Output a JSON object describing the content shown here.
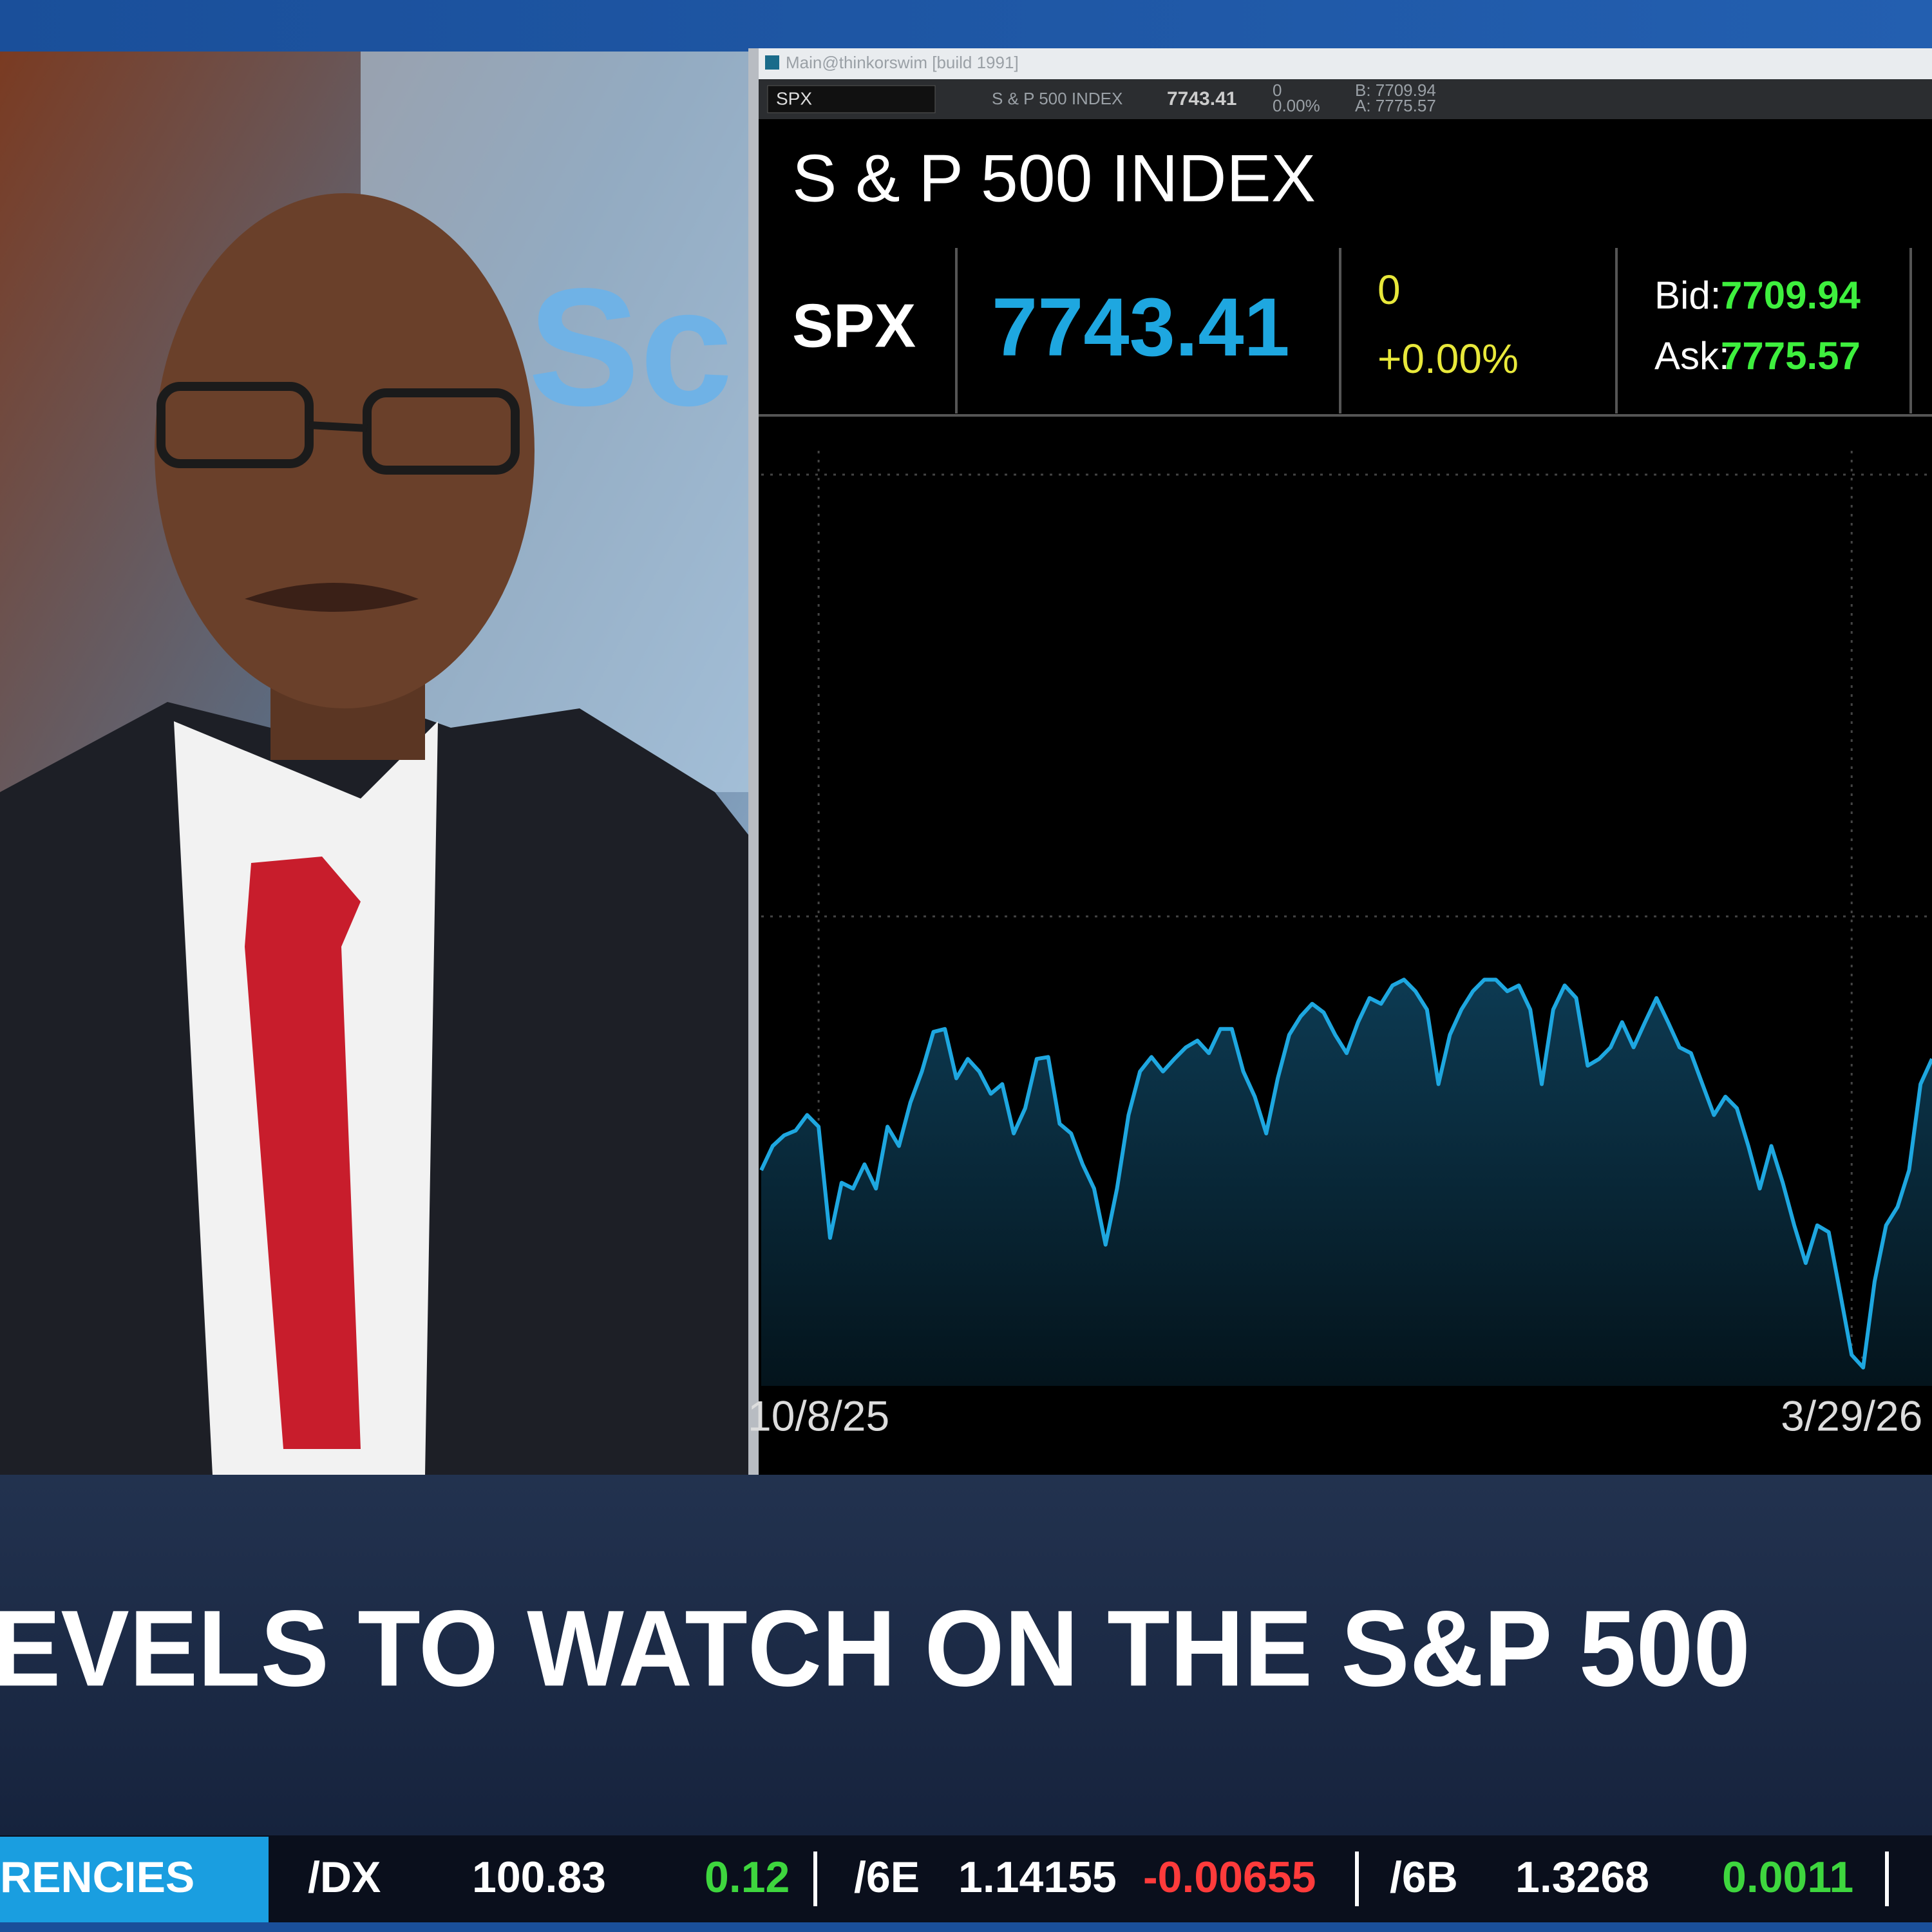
{
  "window": {
    "title": "Main@thinkorswim [build 1991]"
  },
  "toolbar": {
    "symbol": "SPX",
    "description": "S & P 500 INDEX",
    "last": "7743.41",
    "change": "0",
    "percent_change": "0.00%",
    "bid": "B: 7709.94",
    "ask": "A: 7775.57"
  },
  "quote": {
    "title": "S & P 500 INDEX",
    "symbol": "SPX",
    "last": "7743.41",
    "change": "0",
    "percent_change": "+0.00%",
    "bid_label": "Bid:",
    "bid": "7709.94",
    "ask_label": "Ask:",
    "ask": "7775.57"
  },
  "background_logo": "Sc",
  "chart_data": {
    "type": "area",
    "categories": [
      null,
      null,
      null,
      null,
      null,
      "10/8/25",
      null,
      null,
      null,
      null,
      null,
      null,
      null,
      null,
      null,
      null,
      null,
      null,
      null,
      null,
      null,
      null,
      null,
      null,
      null,
      null,
      null,
      null,
      null,
      null,
      null,
      null,
      null,
      null,
      null,
      null,
      null,
      null,
      null,
      null,
      null,
      null,
      null,
      null,
      null,
      null,
      null,
      null,
      null,
      null,
      null,
      null,
      null,
      null,
      null,
      null,
      null,
      null,
      null,
      null,
      null,
      null,
      null,
      null,
      null,
      null,
      null,
      null,
      null,
      null,
      null,
      null,
      null,
      null,
      null,
      null,
      null,
      null,
      null,
      null,
      null,
      null,
      null,
      null,
      null,
      null,
      null,
      null,
      null,
      null,
      null,
      null,
      null,
      null,
      null,
      "3/29/26",
      null,
      null,
      null,
      null,
      null,
      null,
      null
    ],
    "series": [
      {
        "color": "#1ea7e0",
        "values": [
          22.3,
          24.8,
          25.9,
          26.4,
          28.0,
          26.8,
          15.3,
          21.0,
          20.4,
          22.9,
          20.4,
          26.8,
          24.8,
          29.3,
          32.5,
          36.6,
          36.9,
          31.8,
          33.8,
          32.5,
          30.2,
          31.2,
          26.1,
          28.7,
          33.8,
          34.0,
          27.1,
          26.1,
          22.9,
          20.4,
          14.6,
          20.4,
          28.0,
          32.5,
          34.0,
          32.5,
          33.8,
          35.0,
          35.7,
          34.4,
          36.9,
          36.9,
          32.5,
          29.9,
          26.1,
          31.8,
          36.3,
          38.2,
          39.5,
          38.6,
          36.3,
          34.4,
          37.6,
          40.1,
          39.5,
          41.4,
          42.0,
          40.8,
          38.9,
          31.2,
          36.3,
          38.9,
          40.8,
          42.0,
          42.0,
          40.8,
          41.4,
          38.9,
          31.2,
          38.9,
          41.4,
          40.1,
          33.1,
          33.8,
          35.0,
          37.6,
          35.0,
          37.6,
          40.1,
          37.6,
          35.0,
          34.4,
          31.2,
          28.0,
          29.9,
          28.7,
          24.8,
          20.4,
          24.8,
          21.0,
          16.6,
          12.7,
          16.6,
          15.9,
          9.6,
          3.2,
          1.9,
          10.8,
          16.6,
          18.5,
          22.3,
          31.2,
          33.8
        ]
      }
    ],
    "ylim": [
      0,
      100
    ]
  },
  "headline": "EVELS TO WATCH ON THE S&P 500",
  "ticker": {
    "section": "RENCIES",
    "items": [
      {
        "symbol": "/DX",
        "last": "100.83",
        "change": "0.12"
      },
      {
        "symbol": "/6E",
        "last": "1.14155",
        "change": "-0.00655"
      },
      {
        "symbol": "/6B",
        "last": "1.3268",
        "change": "0.0011"
      }
    ]
  }
}
